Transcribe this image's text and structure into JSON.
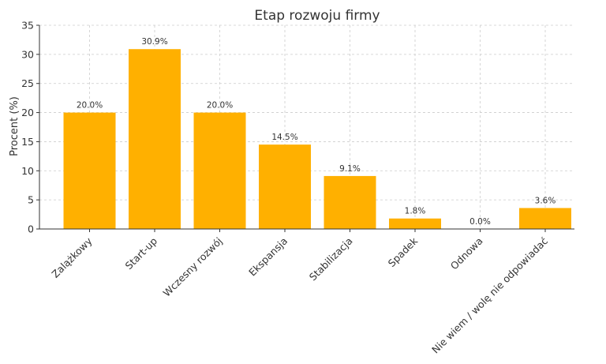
{
  "chart_data": {
    "type": "bar",
    "title": "Etap rozwoju firmy",
    "xlabel": "",
    "ylabel": "Procent (%)",
    "categories": [
      "Zalążkowy",
      "Start-up",
      "Wczesny rozwój",
      "Ekspansja",
      "Stabilizacja",
      "Spadek",
      "Odnowa",
      "Nie wiem / wolę nie odpowiadać"
    ],
    "values": [
      20.0,
      30.9,
      20.0,
      14.5,
      9.1,
      1.8,
      0.0,
      3.6
    ],
    "data_labels": [
      "20.0%",
      "30.9%",
      "20.0%",
      "14.5%",
      "9.1%",
      "1.8%",
      "0.0%",
      "3.6%"
    ],
    "ylim": [
      0,
      35
    ],
    "yticks": [
      0,
      5,
      10,
      15,
      20,
      25,
      30,
      35
    ],
    "grid": true,
    "bar_color": "#ffb000"
  }
}
